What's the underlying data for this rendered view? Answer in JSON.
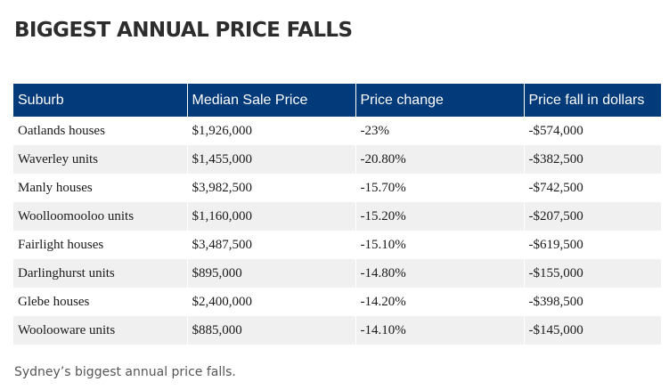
{
  "title": "BIGGEST ANNUAL PRICE FALLS",
  "table": {
    "headers": [
      "Suburb",
      "Median Sale Price",
      "Price change",
      "Price fall in dollars"
    ],
    "rows": [
      [
        "Oatlands houses",
        "$1,926,000",
        "-23%",
        "-$574,000"
      ],
      [
        "Waverley units",
        "$1,455,000",
        "-20.80%",
        "-$382,500"
      ],
      [
        "Manly houses",
        "$3,982,500",
        "-15.70%",
        "-$742,500"
      ],
      [
        "Woolloomooloo units",
        "$1,160,000",
        "-15.20%",
        "-$207,500"
      ],
      [
        "Fairlight houses",
        "$3,487,500",
        "-15.10%",
        "-$619,500"
      ],
      [
        "Darlinghurst units",
        "$895,000",
        "-14.80%",
        "-$155,000"
      ],
      [
        "Glebe houses",
        "$2,400,000",
        "-14.20%",
        "-$398,500"
      ],
      [
        "Woolooware units",
        "$885,000",
        "-14.10%",
        "-$145,000"
      ]
    ]
  },
  "caption": "Sydney’s biggest annual price falls.",
  "colors": {
    "header_bg": "#023a7a",
    "header_text": "#ffffff",
    "row_alt_bg": "#f0f0f0",
    "title_text": "#2d2d2d",
    "caption_text": "#555555"
  }
}
